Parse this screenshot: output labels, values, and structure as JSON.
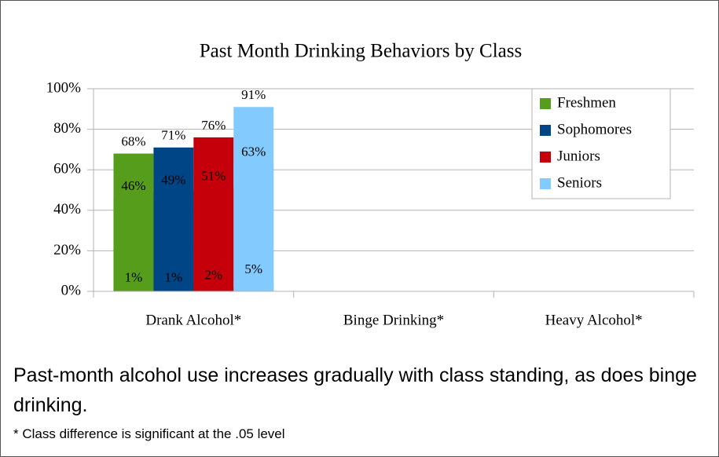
{
  "chart_data": {
    "type": "bar",
    "title": "Past Month Drinking Behaviors by Class",
    "categories": [
      "Drank Alcohol*",
      "Binge Drinking*",
      "Heavy Alcohol*"
    ],
    "series": [
      {
        "name": "Freshmen",
        "color": "#579d1c",
        "values": [
          68,
          46,
          1
        ],
        "value_labels": [
          "68%",
          "46%",
          "1%"
        ]
      },
      {
        "name": "Sophomores",
        "color": "#004586",
        "values": [
          71,
          49,
          1
        ],
        "value_labels": [
          "71%",
          "49%",
          "1%"
        ]
      },
      {
        "name": "Juniors",
        "color": "#c5000b",
        "values": [
          76,
          51,
          2
        ],
        "value_labels": [
          "76%",
          "51%",
          "2%"
        ]
      },
      {
        "name": "Seniors",
        "color": "#83caff",
        "values": [
          91,
          63,
          5
        ],
        "value_labels": [
          "91%",
          "63%",
          "5%"
        ]
      }
    ],
    "ylim": [
      0,
      100
    ],
    "yticks": [
      {
        "value": 0,
        "label": "0%"
      },
      {
        "value": 20,
        "label": "20%"
      },
      {
        "value": 40,
        "label": "40%"
      },
      {
        "value": 60,
        "label": "60%"
      },
      {
        "value": 80,
        "label": "80%"
      },
      {
        "value": 100,
        "label": "100%"
      }
    ],
    "grid": true,
    "legend": "upper right",
    "caption": "Past-month alcohol use increases gradually with class standing, as does binge drinking.",
    "footnote": "* Class difference is significant at the .05 level"
  }
}
